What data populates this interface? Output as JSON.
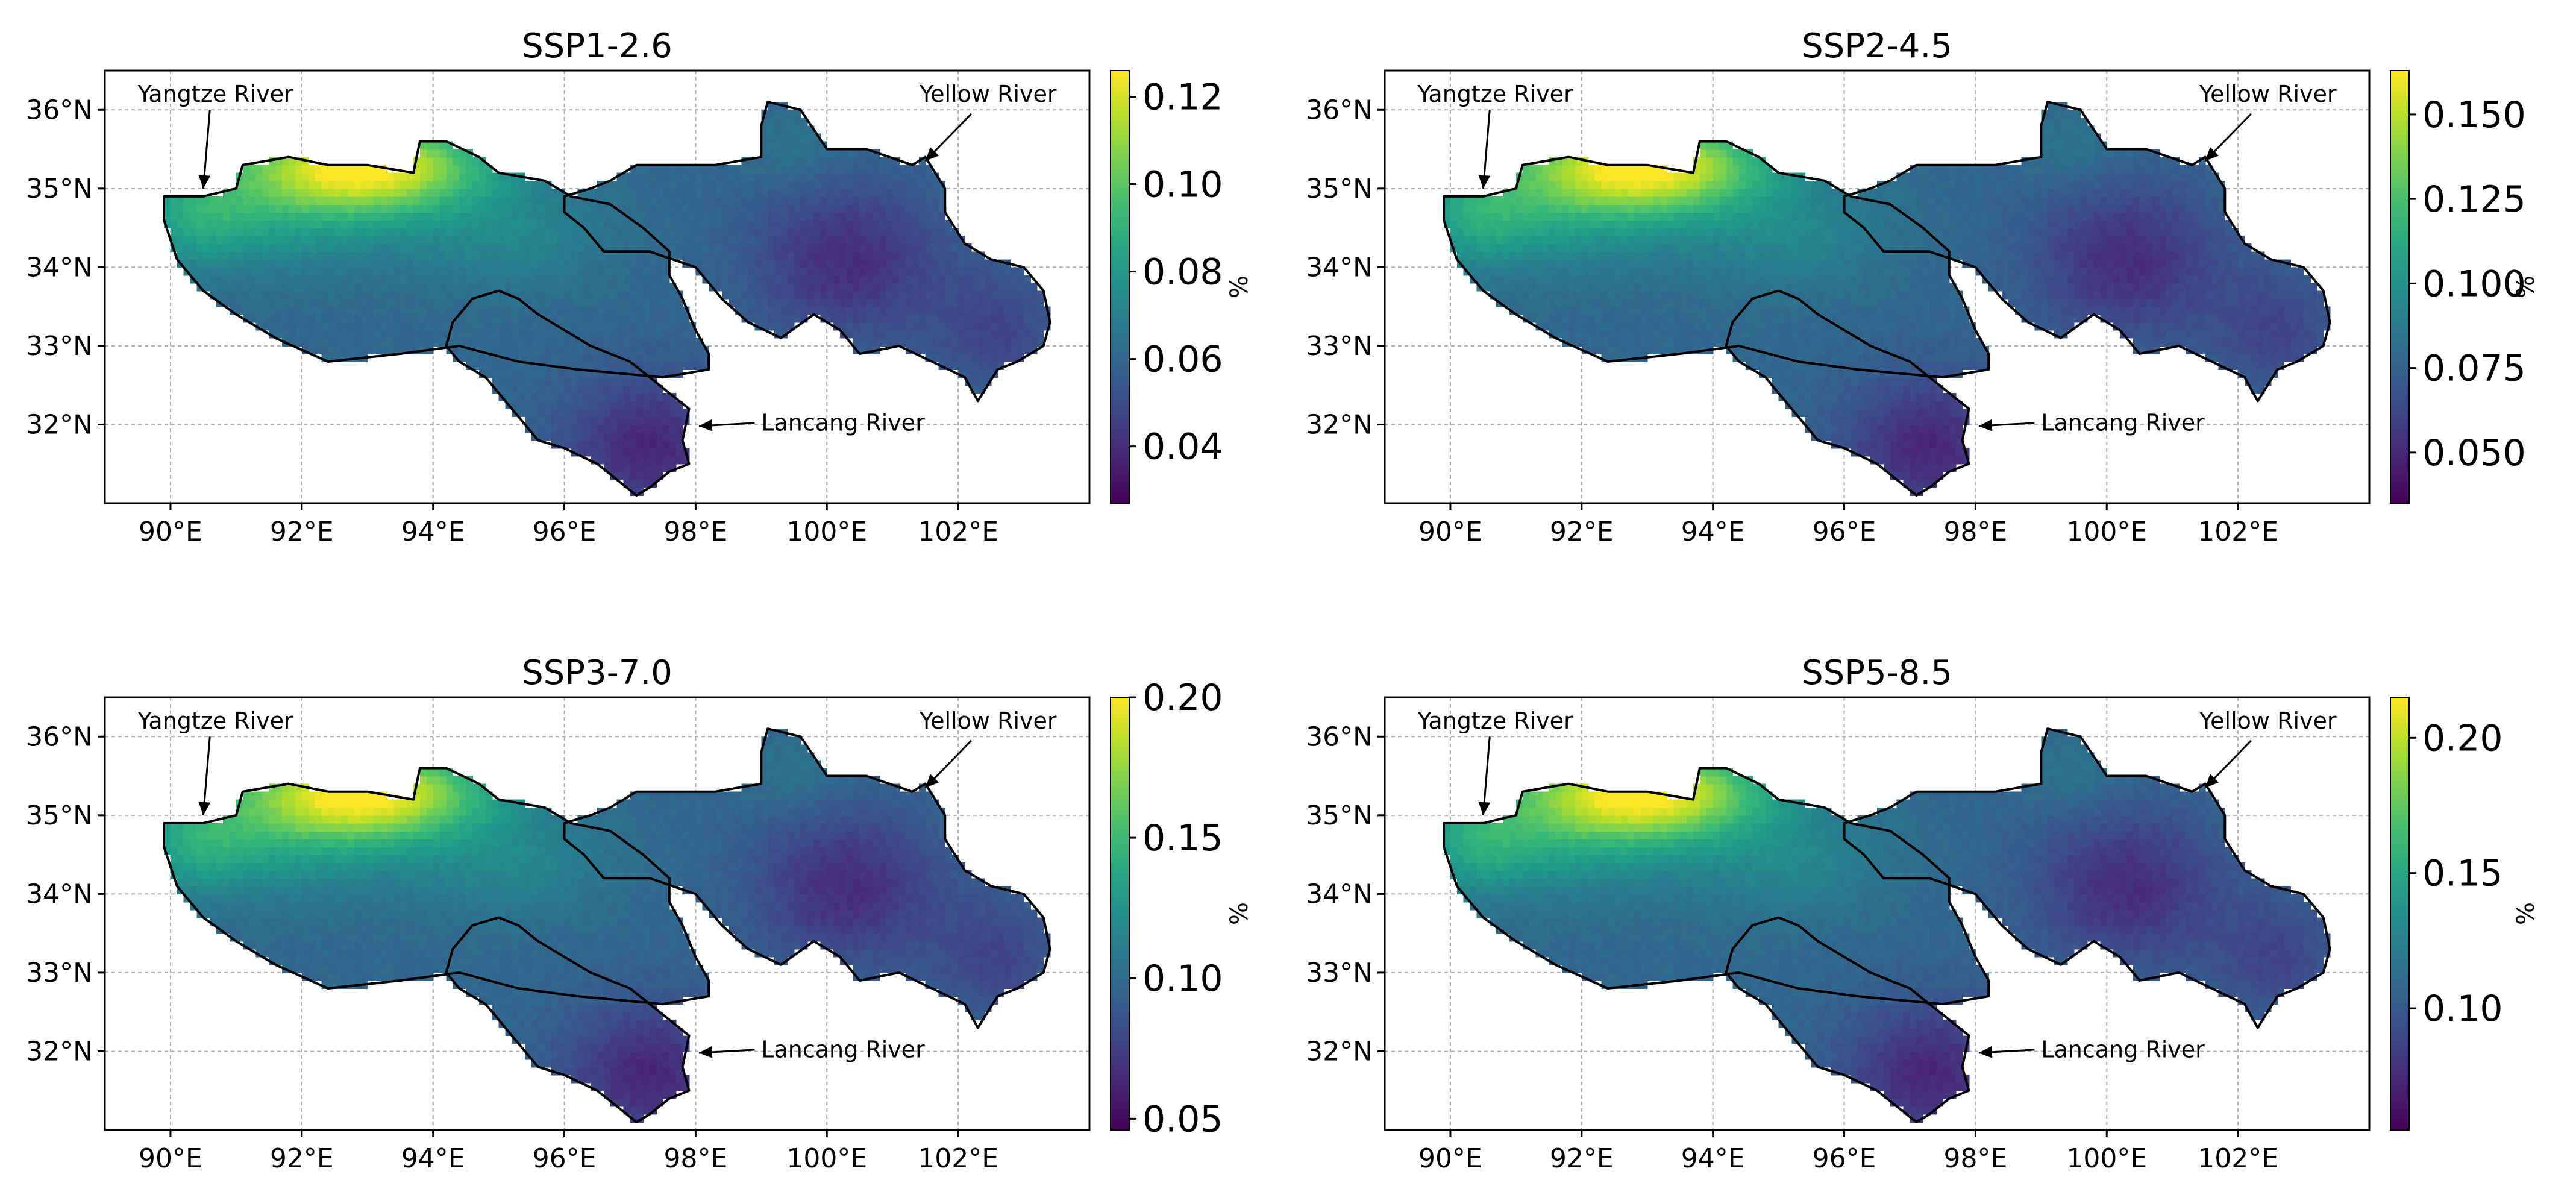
{
  "figure": {
    "colormap": "viridis",
    "units_label": "%",
    "x_ticks": [
      "90°E",
      "92°E",
      "94°E",
      "96°E",
      "98°E",
      "100°E",
      "102°E"
    ],
    "y_ticks": [
      "36°N",
      "35°N",
      "34°N",
      "33°N",
      "32°N"
    ],
    "river_labels": {
      "yangtze": "Yangtze River",
      "yellow": "Yellow River",
      "lancang": "Lancang River"
    },
    "colors": {
      "basin_border": "#000000",
      "grid": "#b0b0b0",
      "frame": "#000000"
    }
  },
  "chart_data": [
    {
      "type": "heatmap",
      "title": "SSP1-2.6",
      "lon_range": [
        89,
        104
      ],
      "lat_range": [
        31,
        36.5
      ],
      "x_tick_values": [
        90,
        92,
        94,
        96,
        98,
        100,
        102
      ],
      "y_tick_values": [
        36,
        35,
        34,
        33,
        32
      ],
      "colorbar": {
        "label": "%",
        "min": 0.027,
        "max": 0.126,
        "ticks": [
          0.04,
          0.06,
          0.08,
          0.1,
          0.12
        ],
        "tick_labels": [
          "0.04",
          "0.06",
          "0.08",
          "0.10",
          "0.12"
        ]
      },
      "value_range": [
        0.027,
        0.126
      ],
      "annotations": [
        "Yangtze River",
        "Yellow River",
        "Lancang River"
      ]
    },
    {
      "type": "heatmap",
      "title": "SSP2-4.5",
      "lon_range": [
        89,
        104
      ],
      "lat_range": [
        31,
        36.5
      ],
      "x_tick_values": [
        90,
        92,
        94,
        96,
        98,
        100,
        102
      ],
      "y_tick_values": [
        36,
        35,
        34,
        33,
        32
      ],
      "colorbar": {
        "label": "%",
        "min": 0.035,
        "max": 0.163,
        "ticks": [
          0.05,
          0.075,
          0.1,
          0.125,
          0.15
        ],
        "tick_labels": [
          "0.050",
          "0.075",
          "0.100",
          "0.125",
          "0.150"
        ]
      },
      "value_range": [
        0.035,
        0.163
      ],
      "annotations": [
        "Yangtze River",
        "Yellow River",
        "Lancang River"
      ]
    },
    {
      "type": "heatmap",
      "title": "SSP3-7.0",
      "lon_range": [
        89,
        104
      ],
      "lat_range": [
        31,
        36.5
      ],
      "x_tick_values": [
        90,
        92,
        94,
        96,
        98,
        100,
        102
      ],
      "y_tick_values": [
        36,
        35,
        34,
        33,
        32
      ],
      "colorbar": {
        "label": "%",
        "min": 0.046,
        "max": 0.2,
        "ticks": [
          0.05,
          0.1,
          0.15,
          0.2
        ],
        "tick_labels": [
          "0.05",
          "0.10",
          "0.15",
          "0.20"
        ]
      },
      "value_range": [
        0.046,
        0.2
      ],
      "annotations": [
        "Yangtze River",
        "Yellow River",
        "Lancang River"
      ]
    },
    {
      "type": "heatmap",
      "title": "SSP5-8.5",
      "lon_range": [
        89,
        104
      ],
      "lat_range": [
        31,
        36.5
      ],
      "x_tick_values": [
        90,
        92,
        94,
        96,
        98,
        100,
        102
      ],
      "y_tick_values": [
        36,
        35,
        34,
        33,
        32
      ],
      "colorbar": {
        "label": "%",
        "min": 0.055,
        "max": 0.215,
        "ticks": [
          0.1,
          0.15,
          0.2
        ],
        "tick_labels": [
          "0.10",
          "0.15",
          "0.20"
        ]
      },
      "value_range": [
        0.055,
        0.215
      ],
      "annotations": [
        "Yangtze River",
        "Yellow River",
        "Lancang River"
      ]
    }
  ]
}
